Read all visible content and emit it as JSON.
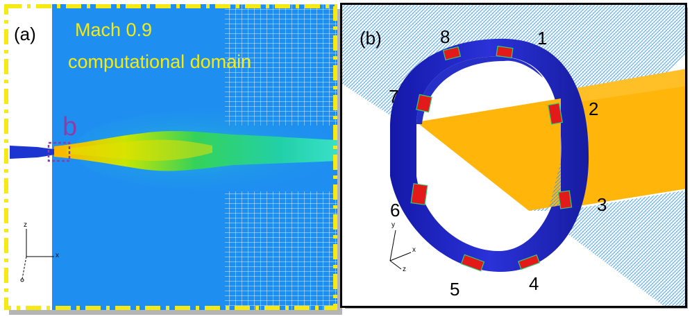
{
  "panel_a": {
    "label": "(a)",
    "title_line1": "Mach 0.9",
    "title_line2": "computational domain",
    "inset_marker": "b",
    "axes": {
      "z": "z",
      "x": "x"
    }
  },
  "panel_b": {
    "label": "(b)",
    "probe_numbers": [
      "1",
      "2",
      "3",
      "4",
      "5",
      "6",
      "7",
      "8"
    ],
    "axes": {
      "y": "y",
      "x": "x",
      "z": "z"
    }
  },
  "colors": {
    "domain_blue": "#1e8ff0",
    "frame_yellow": "#f5ea14",
    "ring_blue": "#1d24c8",
    "sheet_orange": "#ffb50a",
    "probe_red": "#e21a1a",
    "marker_purple": "#8a3fa8"
  }
}
